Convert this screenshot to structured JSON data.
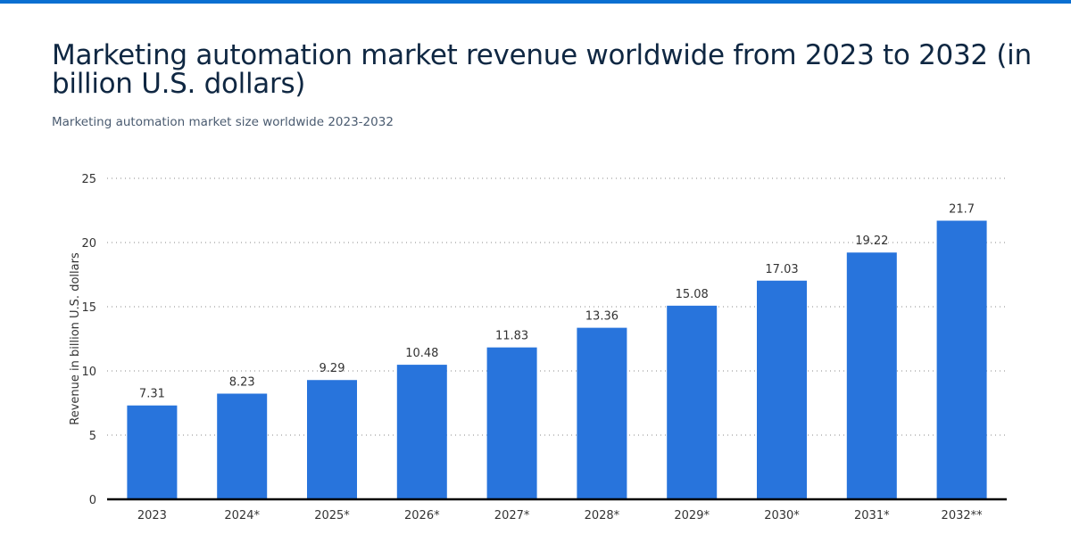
{
  "header": {
    "title": "Marketing automation market revenue worldwide from 2023 to 2032 (in billion U.S. dollars)",
    "subtitle": "Marketing automation market size worldwide 2023-2032"
  },
  "colors": {
    "accent": "#0a6fd1",
    "bar": "#2874dc"
  },
  "chart_data": {
    "type": "bar",
    "title": "Marketing automation market revenue worldwide from 2023 to 2032 (in billion U.S. dollars)",
    "subtitle": "Marketing automation market size worldwide 2023-2032",
    "categories": [
      "2023",
      "2024*",
      "2025*",
      "2026*",
      "2027*",
      "2028*",
      "2029*",
      "2030*",
      "2031*",
      "2032**"
    ],
    "values": [
      7.31,
      8.23,
      9.29,
      10.48,
      11.83,
      13.36,
      15.08,
      17.03,
      19.22,
      21.7
    ],
    "data_labels": [
      "7.31",
      "8.23",
      "9.29",
      "10.48",
      "11.83",
      "13.36",
      "15.08",
      "17.03",
      "19.22",
      "21.7"
    ],
    "xlabel": "",
    "ylabel": "Revenue in billion U.S. dollars",
    "ylim": [
      0,
      25
    ],
    "yticks": [
      0,
      5,
      10,
      15,
      20,
      25
    ],
    "grid": true,
    "legend": "none"
  }
}
